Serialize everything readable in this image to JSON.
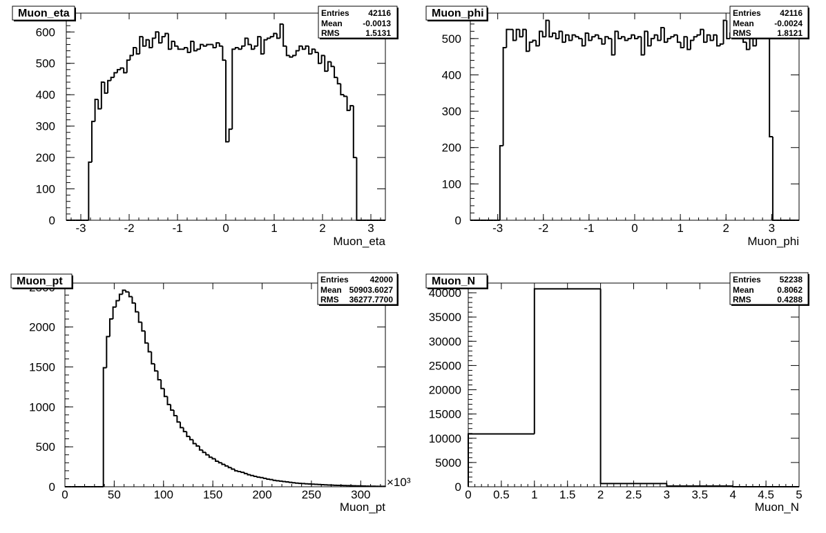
{
  "chart_data": [
    {
      "type": "bar",
      "title": "Muon_eta",
      "xlabel": "Muon_eta",
      "ylabel": "",
      "xlim": [
        -3.3,
        3.3
      ],
      "ylim": [
        0,
        660
      ],
      "xticks": [
        -3,
        -2,
        -1,
        0,
        1,
        2,
        3
      ],
      "xtick_labels": [
        "-3",
        "-2",
        "-1",
        "0",
        "1",
        "2",
        "3"
      ],
      "yticks": [
        0,
        100,
        200,
        300,
        400,
        500,
        600
      ],
      "ytick_labels": [
        "0",
        "100",
        "200",
        "300",
        "400",
        "500",
        "600"
      ],
      "bin_range": [
        -3.3,
        3.3
      ],
      "values": [
        0,
        0,
        0,
        0,
        0,
        0,
        0,
        185,
        315,
        385,
        355,
        440,
        405,
        445,
        455,
        470,
        480,
        485,
        470,
        510,
        525,
        550,
        530,
        585,
        555,
        575,
        550,
        580,
        600,
        565,
        585,
        595,
        545,
        570,
        555,
        545,
        545,
        550,
        535,
        570,
        540,
        545,
        560,
        555,
        560,
        560,
        550,
        565,
        555,
        510,
        250,
        290,
        545,
        550,
        545,
        555,
        580,
        560,
        545,
        555,
        585,
        530,
        575,
        580,
        585,
        595,
        580,
        625,
        555,
        525,
        520,
        525,
        540,
        555,
        545,
        555,
        530,
        545,
        535,
        500,
        525,
        475,
        505,
        490,
        455,
        435,
        400,
        395,
        350,
        365,
        200,
        0,
        0,
        0,
        0,
        0,
        0,
        0,
        0,
        0
      ],
      "grid": false,
      "stats": {
        "Entries": "42116",
        "Mean": "-0.0013",
        "RMS": "1.5131"
      }
    },
    {
      "type": "bar",
      "title": "Muon_phi",
      "xlabel": "Muon_phi",
      "ylabel": "",
      "xlim": [
        -3.6,
        3.6
      ],
      "ylim": [
        0,
        570
      ],
      "xticks": [
        -3,
        -2,
        -1,
        0,
        1,
        2,
        3
      ],
      "xtick_labels": [
        "-3",
        "-2",
        "-1",
        "0",
        "1",
        "2",
        "3"
      ],
      "yticks": [
        0,
        100,
        200,
        300,
        400,
        500
      ],
      "ytick_labels": [
        "0",
        "100",
        "200",
        "300",
        "400",
        "500"
      ],
      "bin_range": [
        -3.6,
        3.6
      ],
      "values": [
        0,
        0,
        0,
        0,
        0,
        0,
        0,
        0,
        0,
        205,
        475,
        525,
        525,
        495,
        525,
        505,
        525,
        465,
        490,
        495,
        480,
        520,
        505,
        550,
        505,
        515,
        500,
        520,
        490,
        510,
        495,
        510,
        505,
        500,
        480,
        515,
        495,
        505,
        510,
        500,
        485,
        505,
        500,
        455,
        520,
        500,
        505,
        495,
        500,
        510,
        500,
        505,
        455,
        520,
        480,
        500,
        510,
        495,
        530,
        490,
        500,
        505,
        510,
        490,
        475,
        505,
        470,
        495,
        505,
        510,
        525,
        490,
        510,
        495,
        510,
        480,
        485,
        550,
        500,
        515,
        535,
        510,
        520,
        490,
        470,
        500,
        480,
        505,
        500,
        505,
        510,
        230,
        0,
        0,
        0,
        0,
        0,
        0,
        0,
        0
      ],
      "grid": false,
      "stats": {
        "Entries": "42116",
        "Mean": "-0.0024",
        "RMS": "1.8121"
      }
    },
    {
      "type": "bar",
      "title": "Muon_pt",
      "xlabel": "Muon_pt",
      "ylabel": "",
      "x_multiplier": "×10³",
      "xlim": [
        0,
        325
      ],
      "ylim": [
        0,
        2550
      ],
      "xticks": [
        0,
        50,
        100,
        150,
        200,
        250,
        300
      ],
      "xtick_labels": [
        "0",
        "50",
        "100",
        "150",
        "200",
        "250",
        "300"
      ],
      "yticks": [
        0,
        500,
        1000,
        1500,
        2000,
        2500
      ],
      "ytick_labels": [
        "0",
        "500",
        "1000",
        "1500",
        "2000",
        "2500"
      ],
      "bin_range": [
        0,
        325
      ],
      "values": [
        0,
        0,
        0,
        0,
        0,
        0,
        0,
        0,
        0,
        0,
        0,
        0,
        1490,
        1880,
        2100,
        2250,
        2330,
        2410,
        2460,
        2440,
        2380,
        2300,
        2190,
        2060,
        1950,
        1800,
        1690,
        1540,
        1450,
        1340,
        1230,
        1130,
        1030,
        960,
        890,
        810,
        740,
        690,
        630,
        590,
        540,
        510,
        460,
        430,
        400,
        370,
        350,
        320,
        300,
        280,
        260,
        240,
        220,
        200,
        190,
        180,
        165,
        150,
        140,
        130,
        120,
        115,
        105,
        95,
        90,
        80,
        75,
        70,
        65,
        60,
        55,
        50,
        45,
        42,
        40,
        37,
        35,
        32,
        30,
        28,
        26,
        24,
        22,
        20,
        18,
        17,
        16,
        15,
        14,
        13,
        12,
        11,
        10,
        9,
        8,
        7,
        6,
        5,
        5,
        5
      ],
      "grid": false,
      "stats": {
        "Entries": "42000",
        "Mean": "50903.6027",
        "RMS": "36277.7700"
      }
    },
    {
      "type": "bar",
      "title": "Muon_N",
      "xlabel": "Muon_N",
      "ylabel": "",
      "xlim": [
        0,
        5
      ],
      "ylim": [
        0,
        42000
      ],
      "xticks": [
        0,
        0.5,
        1,
        1.5,
        2,
        2.5,
        3,
        3.5,
        4,
        4.5,
        5
      ],
      "xtick_labels": [
        "0",
        "0.5",
        "1",
        "1.5",
        "2",
        "2.5",
        "3",
        "3.5",
        "4",
        "4.5",
        "5"
      ],
      "yticks": [
        0,
        5000,
        10000,
        15000,
        20000,
        25000,
        30000,
        35000,
        40000
      ],
      "ytick_labels": [
        "0",
        "5000",
        "10000",
        "15000",
        "20000",
        "25000",
        "30000",
        "35000",
        "40000"
      ],
      "bin_range": [
        0,
        5
      ],
      "values": [
        10900,
        40800,
        650,
        150,
        0
      ],
      "grid": false,
      "stats": {
        "Entries": "52238",
        "Mean": "0.8062",
        "RMS": "0.4288"
      }
    }
  ]
}
